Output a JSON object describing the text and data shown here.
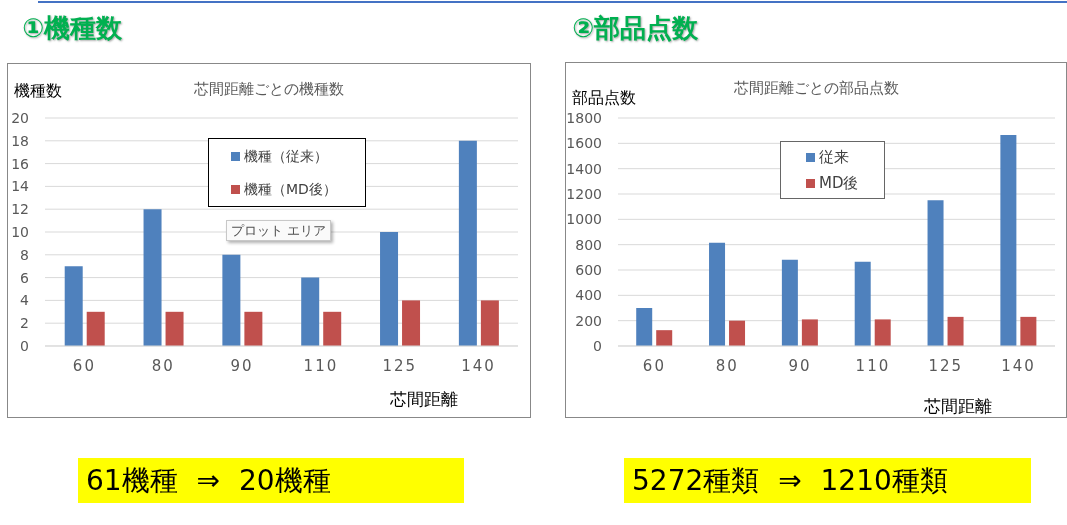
{
  "chart_data": [
    {
      "type": "bar",
      "title": "芯間距離ごとの機種数",
      "xlabel": "芯間距離",
      "ylabel": "機種数",
      "categories": [
        "60",
        "80",
        "90",
        "110",
        "125",
        "140"
      ],
      "series": [
        {
          "name": "機種（従来）",
          "color": "#4f81bd",
          "values": [
            7,
            12,
            8,
            6,
            10,
            18
          ]
        },
        {
          "name": "機種（MD後）",
          "color": "#c0504d",
          "values": [
            3,
            3,
            3,
            3,
            4,
            4
          ]
        }
      ],
      "ylim": [
        0,
        20
      ],
      "yticks": [
        0,
        2,
        4,
        6,
        8,
        10,
        12,
        14,
        16,
        18,
        20
      ],
      "grid": "y",
      "legend": "top",
      "annotations": [
        "①機種数",
        "61機種 ⇒ 20機種",
        "プロット エリア"
      ]
    },
    {
      "type": "bar",
      "title": "芯間距離ごとの部品点数",
      "xlabel": "芯間距離",
      "ylabel": "部品点数",
      "categories": [
        "60",
        "80",
        "90",
        "110",
        "125",
        "140"
      ],
      "series": [
        {
          "name": "従来",
          "color": "#4f81bd",
          "values": [
            300,
            815,
            680,
            665,
            1150,
            1665
          ]
        },
        {
          "name": "MD後",
          "color": "#c0504d",
          "values": [
            125,
            200,
            210,
            210,
            230,
            230
          ]
        }
      ],
      "ylim": [
        0,
        1800
      ],
      "yticks": [
        0,
        200,
        400,
        600,
        800,
        1000,
        1200,
        1400,
        1600,
        1800
      ],
      "grid": "y",
      "legend": "top",
      "annotations": [
        "②部品点数",
        "5272種類 ⇒ 1210種類"
      ]
    }
  ]
}
